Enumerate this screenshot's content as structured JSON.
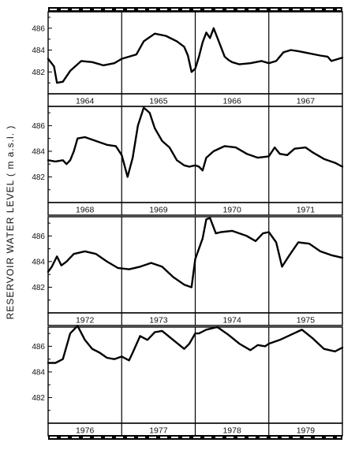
{
  "chart_data": {
    "type": "line",
    "ylabel": "RESERVOIR WATER LEVEL  ( m a.s.l. )",
    "yticks": [
      482,
      484,
      486
    ],
    "ylim": [
      480,
      487.5
    ],
    "xunit": "years",
    "rows": [
      {
        "years": [
          "1964",
          "1965",
          "1966",
          "1967"
        ],
        "x": [
          1964.0,
          1964.08,
          1964.12,
          1964.2,
          1964.3,
          1964.45,
          1964.6,
          1964.75,
          1964.9,
          1965.0,
          1965.1,
          1965.2,
          1965.3,
          1965.45,
          1965.6,
          1965.75,
          1965.85,
          1965.9,
          1965.95,
          1966.0,
          1966.05,
          1966.1,
          1966.15,
          1966.2,
          1966.25,
          1966.32,
          1966.4,
          1966.45,
          1966.5,
          1966.6,
          1966.75,
          1966.9,
          1967.0,
          1967.1,
          1967.2,
          1967.3,
          1967.4,
          1967.55,
          1967.7,
          1967.8,
          1967.85,
          1967.9,
          1968.0
        ],
        "y": [
          483.2,
          482.5,
          481.0,
          481.1,
          482.1,
          483.0,
          482.9,
          482.6,
          482.8,
          483.2,
          483.4,
          483.6,
          484.8,
          485.5,
          485.3,
          484.8,
          484.3,
          483.5,
          482.0,
          482.3,
          483.4,
          484.7,
          485.6,
          485.1,
          486.0,
          484.8,
          483.4,
          483.1,
          482.9,
          482.7,
          482.8,
          483.0,
          482.8,
          483.0,
          483.8,
          484.0,
          483.9,
          483.7,
          483.5,
          483.4,
          483.0,
          483.1,
          483.3
        ]
      },
      {
        "years": [
          "1968",
          "1969",
          "1970",
          "1971"
        ],
        "x": [
          1968.0,
          1968.1,
          1968.2,
          1968.25,
          1968.3,
          1968.35,
          1968.4,
          1968.5,
          1968.65,
          1968.8,
          1968.92,
          1969.0,
          1969.08,
          1969.15,
          1969.22,
          1969.3,
          1969.38,
          1969.45,
          1969.55,
          1969.65,
          1969.75,
          1969.85,
          1969.92,
          1970.0,
          1970.05,
          1970.1,
          1970.15,
          1970.25,
          1970.4,
          1970.55,
          1970.7,
          1970.85,
          1971.0,
          1971.08,
          1971.15,
          1971.25,
          1971.35,
          1971.5,
          1971.6,
          1971.75,
          1971.9,
          1972.0
        ],
        "y": [
          483.3,
          483.2,
          483.3,
          483.0,
          483.3,
          484.0,
          485.0,
          485.1,
          484.8,
          484.5,
          484.4,
          483.7,
          482.0,
          483.5,
          486.0,
          487.4,
          487.0,
          485.8,
          484.8,
          484.3,
          483.3,
          482.9,
          482.8,
          482.9,
          482.8,
          482.5,
          483.5,
          484.0,
          484.4,
          484.3,
          483.8,
          483.5,
          483.6,
          484.3,
          483.8,
          483.7,
          484.2,
          484.3,
          483.9,
          483.4,
          483.1,
          482.8
        ]
      },
      {
        "years": [
          "1972",
          "1973",
          "1974",
          "1975"
        ],
        "x": [
          1972.0,
          1972.05,
          1972.12,
          1972.18,
          1972.25,
          1972.35,
          1972.5,
          1972.65,
          1972.8,
          1972.95,
          1973.1,
          1973.25,
          1973.4,
          1973.55,
          1973.7,
          1973.85,
          1973.95,
          1974.0,
          1974.1,
          1974.15,
          1974.2,
          1974.28,
          1974.35,
          1974.5,
          1974.7,
          1974.82,
          1974.92,
          1975.0,
          1975.1,
          1975.18,
          1975.28,
          1975.4,
          1975.55,
          1975.7,
          1975.85,
          1976.0
        ],
        "y": [
          483.2,
          483.6,
          484.4,
          483.7,
          484.0,
          484.6,
          484.8,
          484.6,
          484.0,
          483.5,
          483.4,
          483.6,
          483.9,
          483.6,
          482.8,
          482.2,
          482.0,
          484.2,
          485.8,
          487.3,
          487.4,
          486.2,
          486.3,
          486.4,
          486.0,
          485.6,
          486.2,
          486.3,
          485.5,
          483.6,
          484.5,
          485.5,
          485.4,
          484.8,
          484.5,
          484.3
        ]
      },
      {
        "years": [
          "1976",
          "1977",
          "1978",
          "1979"
        ],
        "x": [
          1976.0,
          1976.1,
          1976.2,
          1976.3,
          1976.4,
          1976.5,
          1976.6,
          1976.7,
          1976.8,
          1976.9,
          1977.0,
          1977.1,
          1977.15,
          1977.25,
          1977.35,
          1977.45,
          1977.55,
          1977.7,
          1977.85,
          1977.92,
          1978.0,
          1978.05,
          1978.15,
          1978.3,
          1978.45,
          1978.6,
          1978.75,
          1978.85,
          1978.95,
          1979.0,
          1979.15,
          1979.3,
          1979.45,
          1979.6,
          1979.75,
          1979.9,
          1980.0
        ],
        "y": [
          484.7,
          484.7,
          485.0,
          487.0,
          487.6,
          486.5,
          485.8,
          485.5,
          485.1,
          485.0,
          485.2,
          484.9,
          485.5,
          486.8,
          486.5,
          487.1,
          487.2,
          486.5,
          485.8,
          486.2,
          487.0,
          487.0,
          487.3,
          487.5,
          486.9,
          486.2,
          485.7,
          486.1,
          486.0,
          486.2,
          486.5,
          486.9,
          487.3,
          486.6,
          485.8,
          485.6,
          485.9
        ]
      }
    ]
  }
}
